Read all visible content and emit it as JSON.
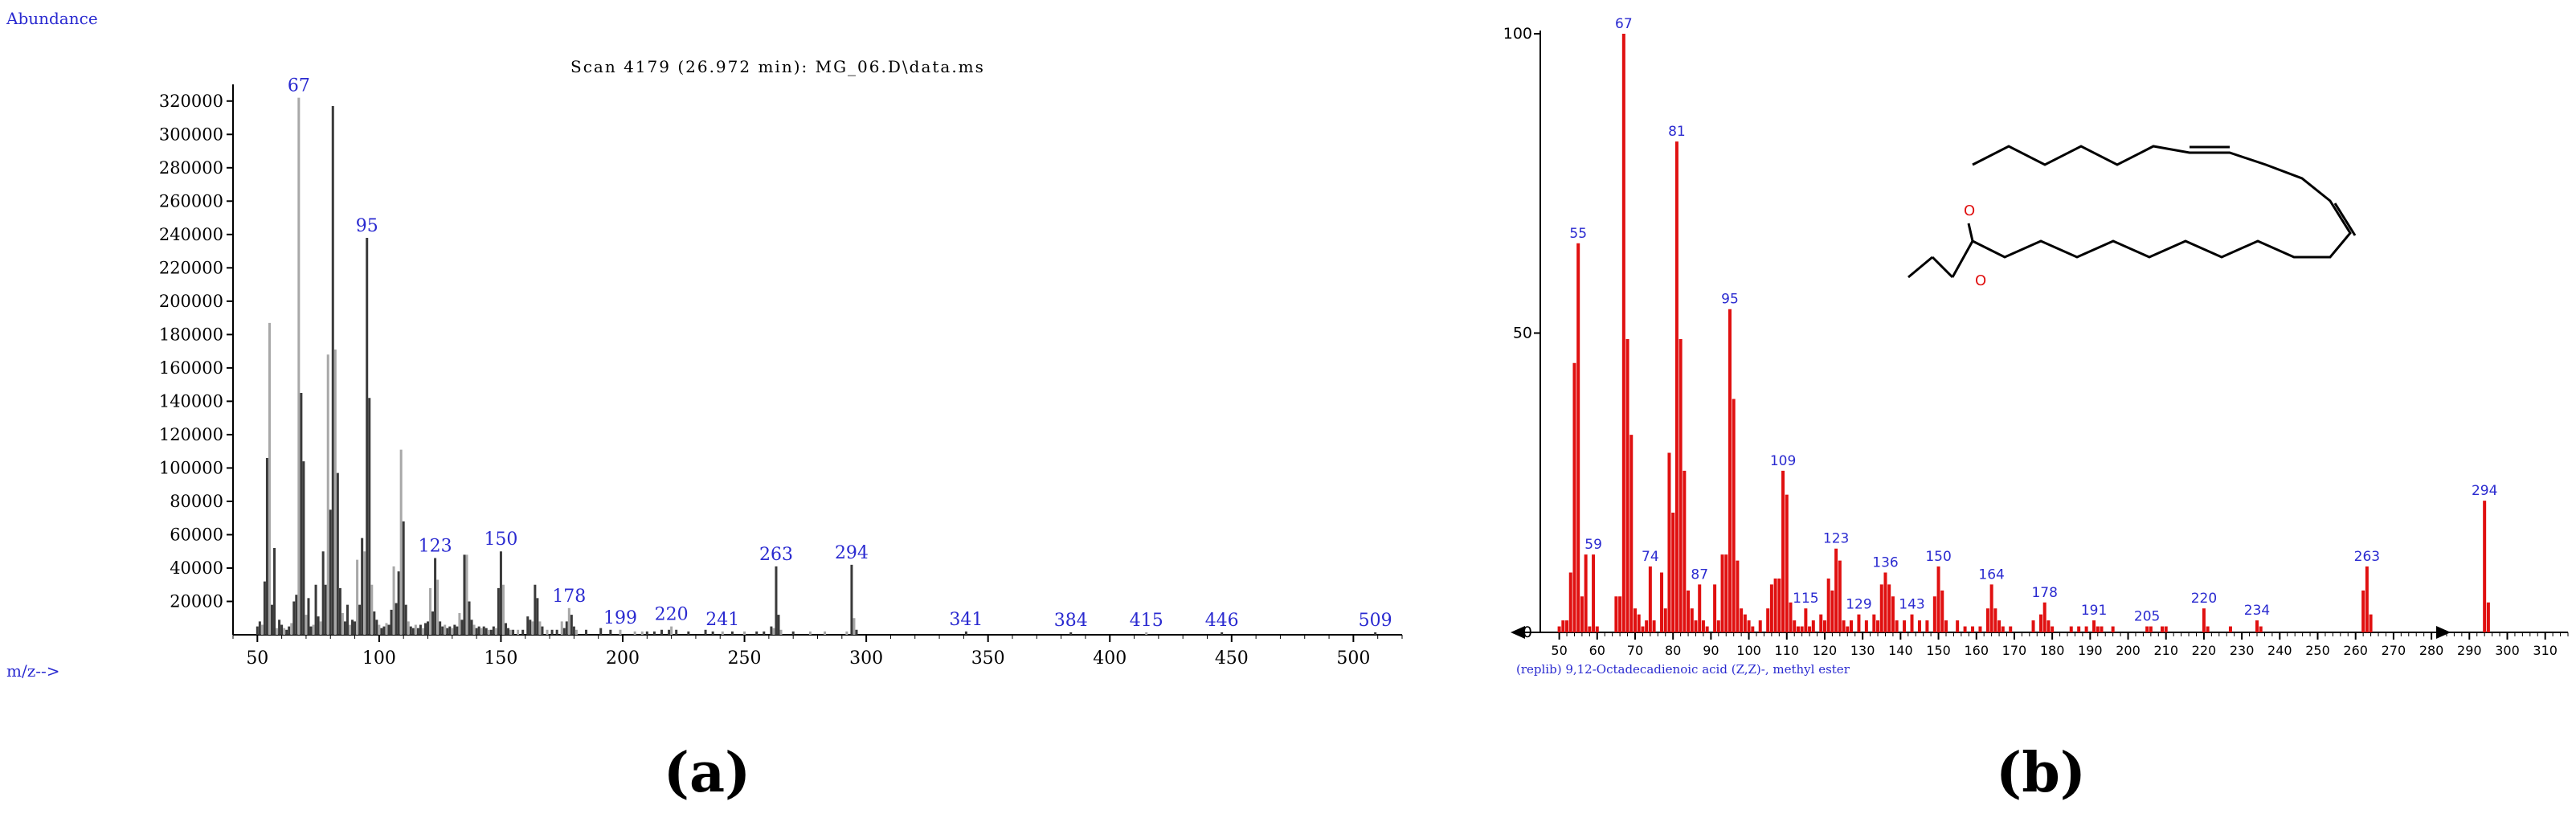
{
  "figure": {
    "label_a": "(a)",
    "label_b": "(b)"
  },
  "chart_data": [
    {
      "type": "bar",
      "ylabel": "Abundance",
      "xlabel": "m/z-->",
      "title": "Scan 4179 (26.972 min): MG_06.D\\data.ms",
      "xlim": [
        40,
        520
      ],
      "ylim": [
        0,
        330000
      ],
      "xticks": [
        50,
        100,
        150,
        200,
        250,
        300,
        350,
        400,
        450,
        500
      ],
      "yticks": [
        20000,
        40000,
        60000,
        80000,
        100000,
        120000,
        140000,
        160000,
        180000,
        200000,
        220000,
        240000,
        260000,
        280000,
        300000,
        320000
      ],
      "colors": {
        "dark": "#3a3a3a",
        "light": "#a8a8a8",
        "label": "#2a2ad0"
      },
      "peaks": [
        [
          50,
          5000
        ],
        [
          51,
          8000
        ],
        [
          52,
          6000
        ],
        [
          53,
          32000
        ],
        [
          54,
          106000
        ],
        [
          55,
          187000
        ],
        [
          56,
          18000
        ],
        [
          57,
          52000
        ],
        [
          58,
          4000
        ],
        [
          59,
          9000
        ],
        [
          60,
          6000
        ],
        [
          61,
          4000
        ],
        [
          62,
          3000
        ],
        [
          63,
          5000
        ],
        [
          64,
          7000
        ],
        [
          65,
          20000
        ],
        [
          66,
          24000
        ],
        [
          67,
          322000
        ],
        [
          68,
          145000
        ],
        [
          69,
          104000
        ],
        [
          70,
          12000
        ],
        [
          71,
          22000
        ],
        [
          72,
          5000
        ],
        [
          73,
          6000
        ],
        [
          74,
          30000
        ],
        [
          75,
          11000
        ],
        [
          76,
          8000
        ],
        [
          77,
          50000
        ],
        [
          78,
          30000
        ],
        [
          79,
          168000
        ],
        [
          80,
          75000
        ],
        [
          81,
          317000
        ],
        [
          82,
          171000
        ],
        [
          83,
          97000
        ],
        [
          84,
          28000
        ],
        [
          85,
          13000
        ],
        [
          86,
          8000
        ],
        [
          87,
          18000
        ],
        [
          88,
          6000
        ],
        [
          89,
          9000
        ],
        [
          90,
          8000
        ],
        [
          91,
          45000
        ],
        [
          92,
          18000
        ],
        [
          93,
          58000
        ],
        [
          94,
          50000
        ],
        [
          95,
          238000
        ],
        [
          96,
          142000
        ],
        [
          97,
          30000
        ],
        [
          98,
          14000
        ],
        [
          99,
          9000
        ],
        [
          100,
          6000
        ],
        [
          101,
          4000
        ],
        [
          102,
          5000
        ],
        [
          103,
          7000
        ],
        [
          104,
          6000
        ],
        [
          105,
          15000
        ],
        [
          106,
          41000
        ],
        [
          107,
          19000
        ],
        [
          108,
          38000
        ],
        [
          109,
          111000
        ],
        [
          110,
          68000
        ],
        [
          111,
          18000
        ],
        [
          112,
          8000
        ],
        [
          113,
          5000
        ],
        [
          114,
          4000
        ],
        [
          115,
          6000
        ],
        [
          116,
          4000
        ],
        [
          117,
          6000
        ],
        [
          118,
          4000
        ],
        [
          119,
          7000
        ],
        [
          120,
          8000
        ],
        [
          121,
          28000
        ],
        [
          122,
          14000
        ],
        [
          123,
          46000
        ],
        [
          124,
          33000
        ],
        [
          125,
          8000
        ],
        [
          126,
          5000
        ],
        [
          127,
          6000
        ],
        [
          128,
          4000
        ],
        [
          129,
          5000
        ],
        [
          130,
          4000
        ],
        [
          131,
          6000
        ],
        [
          132,
          5000
        ],
        [
          133,
          13000
        ],
        [
          134,
          9000
        ],
        [
          135,
          48000
        ],
        [
          136,
          48000
        ],
        [
          137,
          20000
        ],
        [
          138,
          9000
        ],
        [
          139,
          6000
        ],
        [
          140,
          4000
        ],
        [
          141,
          5000
        ],
        [
          142,
          4000
        ],
        [
          143,
          5000
        ],
        [
          144,
          4000
        ],
        [
          145,
          3000
        ],
        [
          146,
          3000
        ],
        [
          147,
          5000
        ],
        [
          148,
          4000
        ],
        [
          149,
          28000
        ],
        [
          150,
          50000
        ],
        [
          151,
          30000
        ],
        [
          152,
          7000
        ],
        [
          153,
          4000
        ],
        [
          154,
          3000
        ],
        [
          155,
          3000
        ],
        [
          157,
          3000
        ],
        [
          159,
          3000
        ],
        [
          161,
          11000
        ],
        [
          162,
          9000
        ],
        [
          163,
          8000
        ],
        [
          164,
          30000
        ],
        [
          165,
          22000
        ],
        [
          166,
          8000
        ],
        [
          167,
          5000
        ],
        [
          169,
          3000
        ],
        [
          171,
          3000
        ],
        [
          173,
          3000
        ],
        [
          175,
          8000
        ],
        [
          176,
          4000
        ],
        [
          177,
          8000
        ],
        [
          178,
          16000
        ],
        [
          179,
          12000
        ],
        [
          180,
          5000
        ],
        [
          181,
          3000
        ],
        [
          185,
          3000
        ],
        [
          191,
          4000
        ],
        [
          195,
          3000
        ],
        [
          199,
          3000
        ],
        [
          205,
          2000
        ],
        [
          208,
          2000
        ],
        [
          210,
          2000
        ],
        [
          213,
          2000
        ],
        [
          216,
          3000
        ],
        [
          219,
          3000
        ],
        [
          220,
          5000
        ],
        [
          222,
          3000
        ],
        [
          227,
          2000
        ],
        [
          234,
          3000
        ],
        [
          237,
          2000
        ],
        [
          241,
          2000
        ],
        [
          245,
          2000
        ],
        [
          250,
          2000
        ],
        [
          255,
          2000
        ],
        [
          258,
          2000
        ],
        [
          261,
          5000
        ],
        [
          262,
          4000
        ],
        [
          263,
          41000
        ],
        [
          264,
          12000
        ],
        [
          265,
          3000
        ],
        [
          270,
          2000
        ],
        [
          277,
          2000
        ],
        [
          283,
          2000
        ],
        [
          292,
          2000
        ],
        [
          294,
          42000
        ],
        [
          295,
          10000
        ],
        [
          296,
          3000
        ],
        [
          341,
          2000
        ],
        [
          384,
          1500
        ],
        [
          415,
          1500
        ],
        [
          446,
          1500
        ],
        [
          509,
          1500
        ]
      ],
      "labels": [
        {
          "x": 67,
          "text": "67"
        },
        {
          "x": 95,
          "text": "95"
        },
        {
          "x": 123,
          "text": "123"
        },
        {
          "x": 150,
          "text": "150"
        },
        {
          "x": 178,
          "text": "178"
        },
        {
          "x": 199,
          "text": "199"
        },
        {
          "x": 220,
          "text": "220"
        },
        {
          "x": 241,
          "text": "241"
        },
        {
          "x": 263,
          "text": "263"
        },
        {
          "x": 294,
          "text": "294"
        },
        {
          "x": 341,
          "text": "341"
        },
        {
          "x": 384,
          "text": "384"
        },
        {
          "x": 415,
          "text": "415"
        },
        {
          "x": 446,
          "text": "446"
        },
        {
          "x": 509,
          "text": "509"
        }
      ]
    },
    {
      "type": "bar",
      "caption": "(replib) 9,12-Octadecadienoic acid (Z,Z)-, methyl ester",
      "xlim": [
        45,
        316
      ],
      "ylim": [
        0,
        100
      ],
      "xticks": [
        50,
        60,
        70,
        80,
        90,
        100,
        110,
        120,
        130,
        140,
        150,
        160,
        170,
        180,
        190,
        200,
        210,
        220,
        230,
        240,
        250,
        260,
        270,
        280,
        290,
        300,
        310
      ],
      "yticks": [
        0,
        50,
        100
      ],
      "colors": {
        "bar": "#e01010",
        "label": "#2a2ad0"
      },
      "structure_atoms": [
        "O",
        "O"
      ],
      "peaks": [
        [
          50,
          1
        ],
        [
          51,
          2
        ],
        [
          52,
          2
        ],
        [
          53,
          10
        ],
        [
          54,
          45
        ],
        [
          55,
          65
        ],
        [
          56,
          6
        ],
        [
          57,
          13
        ],
        [
          58,
          1
        ],
        [
          59,
          13
        ],
        [
          60,
          1
        ],
        [
          65,
          6
        ],
        [
          66,
          6
        ],
        [
          67,
          100
        ],
        [
          68,
          49
        ],
        [
          69,
          33
        ],
        [
          70,
          4
        ],
        [
          71,
          3
        ],
        [
          72,
          1
        ],
        [
          73,
          2
        ],
        [
          74,
          11
        ],
        [
          75,
          2
        ],
        [
          77,
          10
        ],
        [
          78,
          4
        ],
        [
          79,
          30
        ],
        [
          80,
          20
        ],
        [
          81,
          82
        ],
        [
          82,
          49
        ],
        [
          83,
          27
        ],
        [
          84,
          7
        ],
        [
          85,
          4
        ],
        [
          86,
          2
        ],
        [
          87,
          8
        ],
        [
          88,
          2
        ],
        [
          89,
          1
        ],
        [
          91,
          8
        ],
        [
          92,
          2
        ],
        [
          93,
          13
        ],
        [
          94,
          13
        ],
        [
          95,
          54
        ],
        [
          96,
          39
        ],
        [
          97,
          12
        ],
        [
          98,
          4
        ],
        [
          99,
          3
        ],
        [
          100,
          2
        ],
        [
          101,
          1
        ],
        [
          103,
          2
        ],
        [
          105,
          4
        ],
        [
          106,
          8
        ],
        [
          107,
          9
        ],
        [
          108,
          9
        ],
        [
          109,
          27
        ],
        [
          110,
          23
        ],
        [
          111,
          5
        ],
        [
          112,
          2
        ],
        [
          113,
          1
        ],
        [
          114,
          1
        ],
        [
          115,
          4
        ],
        [
          116,
          1
        ],
        [
          117,
          2
        ],
        [
          119,
          3
        ],
        [
          120,
          2
        ],
        [
          121,
          9
        ],
        [
          122,
          7
        ],
        [
          123,
          14
        ],
        [
          124,
          12
        ],
        [
          125,
          2
        ],
        [
          126,
          1
        ],
        [
          127,
          2
        ],
        [
          129,
          3
        ],
        [
          131,
          2
        ],
        [
          133,
          3
        ],
        [
          134,
          2
        ],
        [
          135,
          8
        ],
        [
          136,
          10
        ],
        [
          137,
          8
        ],
        [
          138,
          6
        ],
        [
          139,
          2
        ],
        [
          141,
          2
        ],
        [
          143,
          3
        ],
        [
          145,
          2
        ],
        [
          147,
          2
        ],
        [
          149,
          6
        ],
        [
          150,
          11
        ],
        [
          151,
          7
        ],
        [
          152,
          2
        ],
        [
          155,
          2
        ],
        [
          157,
          1
        ],
        [
          159,
          1
        ],
        [
          161,
          1
        ],
        [
          163,
          4
        ],
        [
          164,
          8
        ],
        [
          165,
          4
        ],
        [
          166,
          2
        ],
        [
          167,
          1
        ],
        [
          169,
          1
        ],
        [
          175,
          2
        ],
        [
          177,
          3
        ],
        [
          178,
          5
        ],
        [
          179,
          2
        ],
        [
          180,
          1
        ],
        [
          185,
          1
        ],
        [
          187,
          1
        ],
        [
          189,
          1
        ],
        [
          191,
          2
        ],
        [
          192,
          1
        ],
        [
          193,
          1
        ],
        [
          196,
          1
        ],
        [
          205,
          1
        ],
        [
          206,
          1
        ],
        [
          209,
          1
        ],
        [
          210,
          1
        ],
        [
          220,
          4
        ],
        [
          221,
          1
        ],
        [
          227,
          1
        ],
        [
          234,
          2
        ],
        [
          235,
          1
        ],
        [
          262,
          7
        ],
        [
          263,
          11
        ],
        [
          264,
          3
        ],
        [
          294,
          22
        ],
        [
          295,
          5
        ]
      ],
      "labels": [
        {
          "x": 55,
          "text": "55"
        },
        {
          "x": 59,
          "text": "59"
        },
        {
          "x": 67,
          "text": "67"
        },
        {
          "x": 74,
          "text": "74"
        },
        {
          "x": 81,
          "text": "81"
        },
        {
          "x": 87,
          "text": "87"
        },
        {
          "x": 95,
          "text": "95"
        },
        {
          "x": 109,
          "text": "109"
        },
        {
          "x": 115,
          "text": "115"
        },
        {
          "x": 123,
          "text": "123"
        },
        {
          "x": 129,
          "text": "129"
        },
        {
          "x": 136,
          "text": "136"
        },
        {
          "x": 143,
          "text": "143"
        },
        {
          "x": 150,
          "text": "150"
        },
        {
          "x": 164,
          "text": "164"
        },
        {
          "x": 178,
          "text": "178"
        },
        {
          "x": 191,
          "text": "191"
        },
        {
          "x": 205,
          "text": "205"
        },
        {
          "x": 220,
          "text": "220"
        },
        {
          "x": 234,
          "text": "234"
        },
        {
          "x": 263,
          "text": "263"
        },
        {
          "x": 294,
          "text": "294"
        }
      ]
    }
  ]
}
